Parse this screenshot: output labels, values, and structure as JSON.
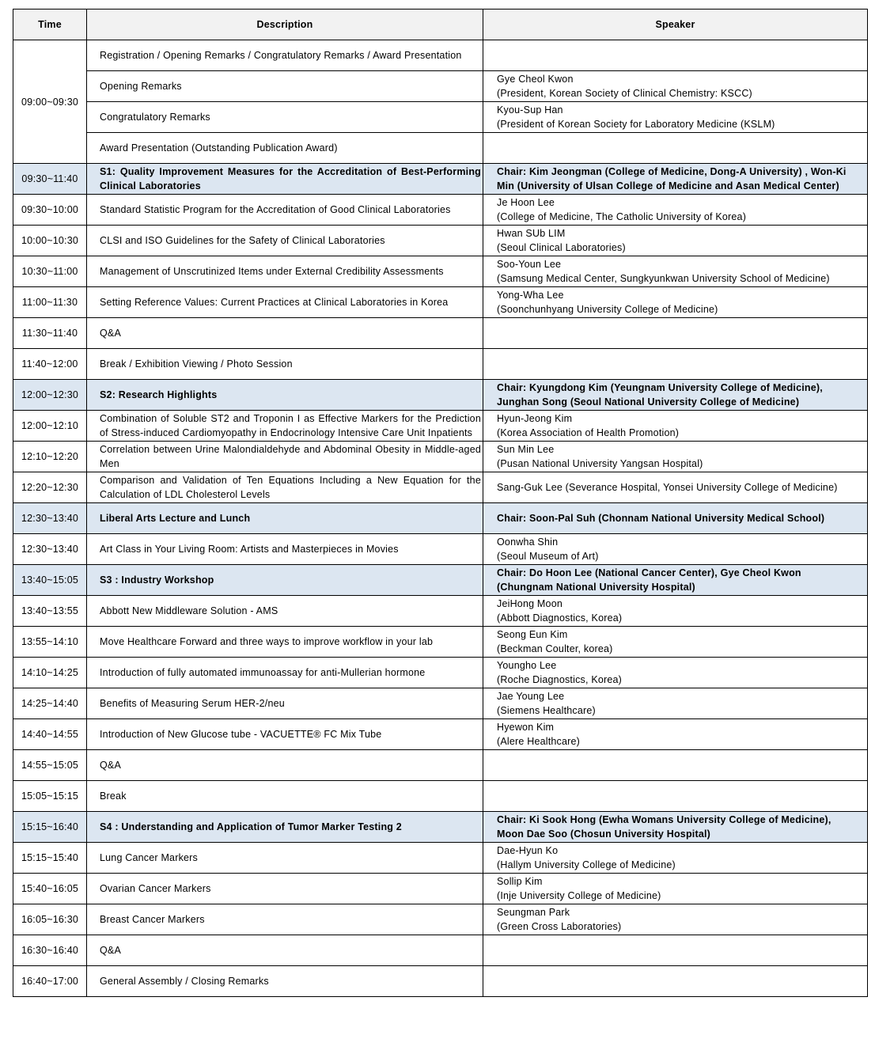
{
  "colors": {
    "header_bg": "#f2f2f2",
    "session_bg": "#dce6f1",
    "border": "#000000"
  },
  "headers": {
    "time": "Time",
    "description": "Description",
    "speaker": "Speaker"
  },
  "rows": [
    {
      "time": "09:00~09:30",
      "time_rowspan": 4,
      "description": "Registration / Opening Remarks / Congratulatory Remarks / Award Presentation",
      "speaker": []
    },
    {
      "description": "Opening Remarks",
      "speaker": [
        "Gye Cheol Kwon",
        "(President, Korean Society of Clinical Chemistry: KSCC)"
      ]
    },
    {
      "description": "Congratulatory Remarks",
      "speaker": [
        "Kyou-Sup Han",
        "(President of Korean Society for Laboratory Medicine (KSLM)"
      ]
    },
    {
      "description": "Award Presentation (Outstanding Publication Award)",
      "speaker": []
    },
    {
      "time": "09:30~11:40",
      "session": true,
      "description": "S1: Quality Improvement Measures for the Accreditation of Best-Performing Clinical Laboratories",
      "speaker": [
        "Chair: Kim Jeongman (College of Medicine, Dong-A University) , Won-Ki Min (University of Ulsan College of Medicine and Asan Medical Center)"
      ]
    },
    {
      "time": "09:30~10:00",
      "description": "Standard Statistic Program for the Accreditation of Good Clinical Laboratories",
      "speaker": [
        "Je Hoon Lee",
        "(College of Medicine, The Catholic University of Korea)"
      ]
    },
    {
      "time": "10:00~10:30",
      "description": "CLSI and ISO Guidelines for the Safety of Clinical Laboratories",
      "speaker": [
        "Hwan SUb LIM",
        "(Seoul Clinical Laboratories)"
      ]
    },
    {
      "time": "10:30~11:00",
      "description": "Management of Unscrutinized Items  under External Credibility Assessments",
      "speaker": [
        "Soo-Youn Lee",
        "(Samsung Medical Center, Sungkyunkwan University School of Medicine)"
      ]
    },
    {
      "time": "11:00~11:30",
      "description": "Setting Reference Values: Current Practices at Clinical Laboratories in Korea",
      "speaker": [
        "Yong-Wha Lee",
        "(Soonchunhyang University College of Medicine)"
      ]
    },
    {
      "time": "11:30~11:40",
      "description": "Q&A",
      "speaker": []
    },
    {
      "time": "11:40~12:00",
      "description": "Break / Exhibition Viewing / Photo Session",
      "speaker": []
    },
    {
      "time": "12:00~12:30",
      "session": true,
      "description": "S2: Research Highlights",
      "speaker": [
        "Chair: Kyungdong Kim (Yeungnam University College of Medicine),",
        "Junghan Song (Seoul National University College of Medicine)"
      ]
    },
    {
      "time": "12:00~12:10",
      "description": "Combination of Soluble ST2 and Troponin I as Effective Markers for the Prediction of Stress-induced Cardiomyopathy in Endocrinology Intensive Care Unit Inpatients",
      "speaker": [
        "Hyun-Jeong Kim",
        "(Korea Association of Health Promotion)"
      ]
    },
    {
      "time": "12:10~12:20",
      "description": "Correlation between Urine Malondialdehyde and Abdominal Obesity in Middle-aged Men",
      "speaker": [
        "Sun Min Lee",
        "(Pusan National University Yangsan Hospital)"
      ]
    },
    {
      "time": "12:20~12:30",
      "description": "Comparison and Validation of Ten Equations Including a New Equation for the Calculation of LDL Cholesterol Levels",
      "speaker": [
        "Sang-Guk Lee (Severance Hospital, Yonsei University College of Medicine)"
      ]
    },
    {
      "time": "12:30~13:40",
      "session": true,
      "description": "Liberal Arts Lecture and Lunch",
      "speaker": [
        "Chair: Soon-Pal Suh (Chonnam National University Medical School)"
      ]
    },
    {
      "time": "12:30~13:40",
      "description": "Art Class in Your Living Room: Artists and Masterpieces in Movies",
      "speaker": [
        "Oonwha Shin",
        "(Seoul Museum of Art)"
      ]
    },
    {
      "time": "13:40~15:05",
      "session": true,
      "description": "S3 : Industry Workshop",
      "speaker": [
        "Chair: Do Hoon Lee (National Cancer Center), Gye Cheol Kwon",
        "(Chungnam National University Hospital)"
      ]
    },
    {
      "time": "13:40~13:55",
      "description": "Abbott New Middleware Solution - AMS",
      "speaker": [
        "JeiHong Moon",
        "(Abbott Diagnostics, Korea)"
      ]
    },
    {
      "time": "13:55~14:10",
      "description": "Move Healthcare Forward and three ways to improve workflow in your lab",
      "speaker": [
        "Seong Eun Kim",
        "(Beckman Coulter, korea)"
      ]
    },
    {
      "time": "14:10~14:25",
      "description": "Introduction of fully automated immunoassay for anti-Mullerian hormone",
      "speaker": [
        "Youngho Lee",
        "(Roche Diagnostics, Korea)"
      ]
    },
    {
      "time": "14:25~14:40",
      "description": "Benefits of Measuring Serum HER-2/neu",
      "speaker": [
        "Jae Young Lee",
        "(Siemens Healthcare)"
      ]
    },
    {
      "time": "14:40~14:55",
      "description": "Introduction of New Glucose tube - VACUETTE® FC Mix Tube",
      "speaker": [
        "Hyewon Kim",
        "(Alere Healthcare)"
      ]
    },
    {
      "time": "14:55~15:05",
      "description": "Q&A",
      "speaker": []
    },
    {
      "time": "15:05~15:15",
      "description": "Break",
      "speaker": []
    },
    {
      "time": "15:15~16:40",
      "session": true,
      "description": "S4 : Understanding and Application of Tumor Marker Testing 2",
      "speaker": [
        "Chair: Ki Sook Hong (Ewha Womans University College of Medicine),",
        "Moon Dae Soo (Chosun University Hospital)"
      ]
    },
    {
      "time": "15:15~15:40",
      "description": "Lung Cancer Markers",
      "speaker": [
        "Dae-Hyun Ko",
        "(Hallym University College of Medicine)"
      ]
    },
    {
      "time": "15:40~16:05",
      "description": "Ovarian Cancer Markers",
      "speaker": [
        "Sollip Kim",
        "(Inje University College of Medicine)"
      ]
    },
    {
      "time": "16:05~16:30",
      "description": "Breast Cancer Markers",
      "speaker": [
        "Seungman Park",
        "(Green Cross Laboratories)"
      ]
    },
    {
      "time": "16:30~16:40",
      "description": "Q&A",
      "speaker": []
    },
    {
      "time": "16:40~17:00",
      "description": "General Assembly / Closing Remarks",
      "speaker": []
    }
  ]
}
